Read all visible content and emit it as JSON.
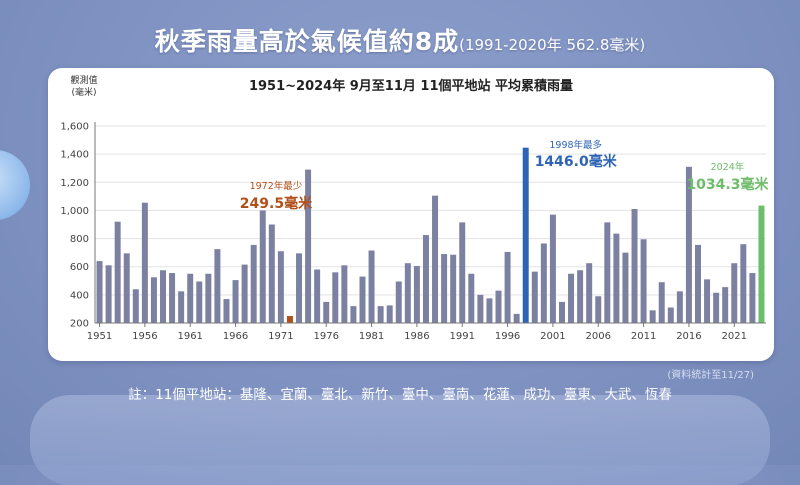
{
  "title": {
    "main": "秋季雨量高於氣候值約8成",
    "sub": "(1991-2020年 562.8毫米)"
  },
  "chart_data": {
    "type": "bar",
    "title": "1951~2024年  9月至11月 11個平地站 平均累積雨量",
    "ylabel_line1": "觀測值",
    "ylabel_line2": "(毫米)",
    "ylim": [
      200,
      1600
    ],
    "yticks": [
      200,
      400,
      600,
      800,
      1000,
      1200,
      1400,
      1600
    ],
    "ytick_labels": [
      "200",
      "400",
      "600",
      "800",
      "1,000",
      "1,200",
      "1,400",
      "1,600"
    ],
    "xtick_labels": [
      "1951",
      "1956",
      "1961",
      "1966",
      "1971",
      "1976",
      "1981",
      "1986",
      "1991",
      "1996",
      "2001",
      "2006",
      "2011",
      "2016",
      "2021"
    ],
    "grid": true,
    "categories": [
      1951,
      1952,
      1953,
      1954,
      1955,
      1956,
      1957,
      1958,
      1959,
      1960,
      1961,
      1962,
      1963,
      1964,
      1965,
      1966,
      1967,
      1968,
      1969,
      1970,
      1971,
      1972,
      1973,
      1974,
      1975,
      1976,
      1977,
      1978,
      1979,
      1980,
      1981,
      1982,
      1983,
      1984,
      1985,
      1986,
      1987,
      1988,
      1989,
      1990,
      1991,
      1992,
      1993,
      1994,
      1995,
      1996,
      1997,
      1998,
      1999,
      2000,
      2001,
      2002,
      2003,
      2004,
      2005,
      2006,
      2007,
      2008,
      2009,
      2010,
      2011,
      2012,
      2013,
      2014,
      2015,
      2016,
      2017,
      2018,
      2019,
      2020,
      2021,
      2022,
      2023,
      2024
    ],
    "values": [
      640,
      610,
      920,
      695,
      440,
      1055,
      525,
      575,
      555,
      425,
      550,
      495,
      550,
      725,
      370,
      505,
      615,
      755,
      1000,
      900,
      710,
      249.5,
      695,
      1290,
      580,
      350,
      560,
      610,
      320,
      530,
      715,
      320,
      325,
      495,
      625,
      605,
      825,
      1105,
      690,
      685,
      915,
      550,
      400,
      375,
      430,
      705,
      265,
      1446.0,
      565,
      765,
      970,
      350,
      550,
      575,
      625,
      390,
      915,
      835,
      700,
      1010,
      795,
      290,
      490,
      310,
      425,
      1310,
      755,
      510,
      415,
      455,
      625,
      760,
      555,
      1034.3
    ],
    "colors": {
      "default": "#7c81a1",
      "min": "#b0501a",
      "max": "#2e64b4",
      "latest": "#6dbd6a",
      "axis": "#777777",
      "grid": "#e3e3e3"
    },
    "annotations": {
      "min": {
        "year_label": "1972年最少",
        "value_label": "249.5毫米"
      },
      "max": {
        "year_label": "1998年最多",
        "value_label": "1446.0毫米"
      },
      "latest": {
        "year_label": "2024年",
        "value_label": "1034.3毫米"
      }
    }
  },
  "stat_note": "(資料統計至11/27)",
  "footnote": "註：11個平地站：基隆、宜蘭、臺北、新竹、臺中、臺南、花蓮、成功、臺東、大武、恆春"
}
